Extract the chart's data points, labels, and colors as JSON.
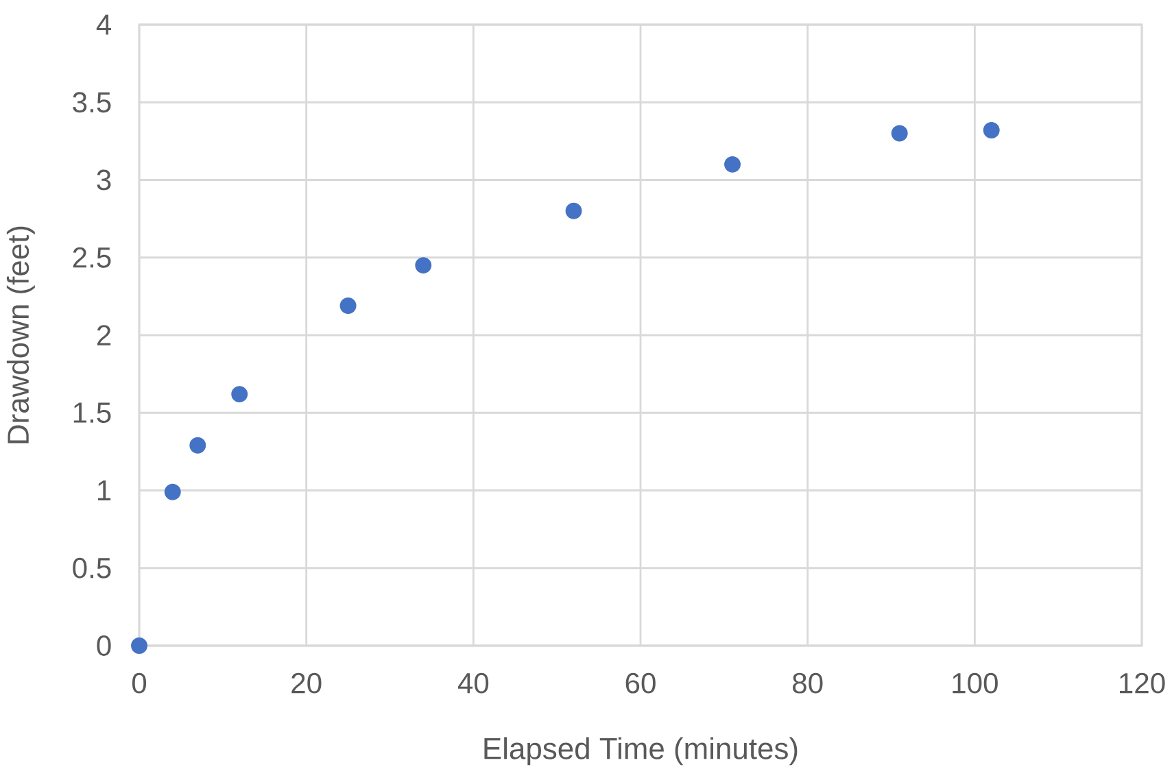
{
  "chart_data": {
    "type": "scatter",
    "xlabel": "Elapsed Time (minutes)",
    "ylabel": "Drawdown (feet)",
    "x": [
      0,
      4,
      7,
      12,
      25,
      34,
      52,
      71,
      91,
      102
    ],
    "values": [
      0,
      0.99,
      1.29,
      1.62,
      2.19,
      2.45,
      2.8,
      3.1,
      3.3,
      3.32
    ],
    "color": "#4472c4",
    "marker": "circle",
    "grid": true,
    "xlim": [
      0,
      120
    ],
    "xticks": [
      0,
      20,
      40,
      60,
      80,
      100,
      120
    ],
    "ylim": [
      0,
      4
    ],
    "yticks": [
      0,
      0.5,
      1,
      1.5,
      2,
      2.5,
      3,
      3.5,
      4
    ]
  }
}
